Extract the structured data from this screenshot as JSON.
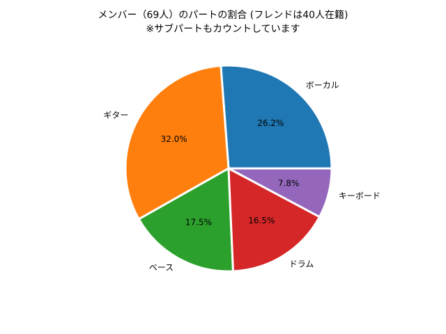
{
  "chart_data": {
    "type": "pie",
    "title": "メンバー（69人）のパートの割合 (フレンドは40人在籍)",
    "subtitle": "※サブパートもカウントしています",
    "categories": [
      "ボーカル",
      "ギター",
      "ベース",
      "ドラム",
      "キーボード"
    ],
    "values": [
      26.2,
      32.0,
      17.5,
      16.5,
      7.8
    ],
    "value_labels": [
      "26.2%",
      "32.0%",
      "17.5%",
      "16.5%",
      "7.8%"
    ],
    "colors": [
      "#1f77b4",
      "#ff7f0e",
      "#2ca02c",
      "#d62728",
      "#9467bd"
    ],
    "start_angle": "0° (3 o'clock), counter-clockwise",
    "legend": "none"
  }
}
